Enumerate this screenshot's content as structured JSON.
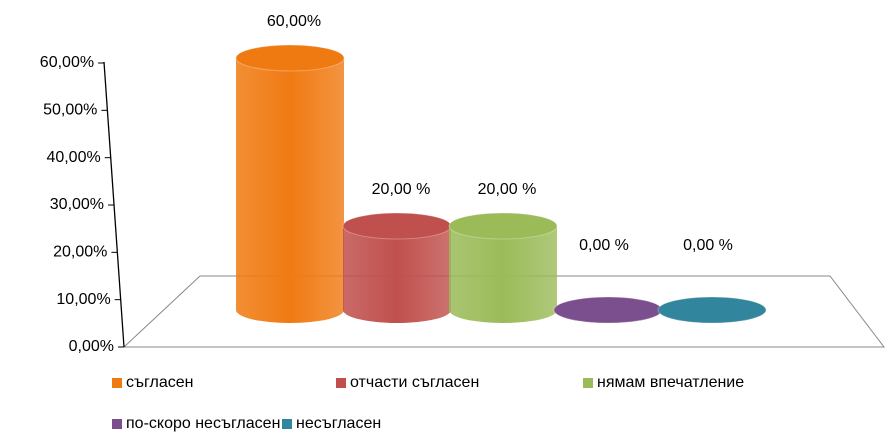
{
  "chart_data": {
    "type": "bar",
    "categories": [
      "съгласен",
      "отчасти съгласен",
      "нямам впечатление",
      "по-скоро несъгласен",
      "несъгласен"
    ],
    "values": [
      60,
      20,
      20,
      0,
      0
    ],
    "value_labels": [
      "60,00%",
      "20,00 %",
      "20,00 %",
      "0,00 %",
      "0,00 %"
    ],
    "colors": [
      "#f07a12",
      "#c0504d",
      "#9bbb59",
      "#7b4f8e",
      "#31859c"
    ],
    "ylim": [
      0,
      60
    ],
    "yticks": [
      {
        "value": 0,
        "label": "0,00%"
      },
      {
        "value": 10,
        "label": "10,00%"
      },
      {
        "value": 20,
        "label": "20,00%"
      },
      {
        "value": 30,
        "label": "30,00%"
      },
      {
        "value": 40,
        "label": "40,00%"
      },
      {
        "value": 50,
        "label": "50,00%"
      },
      {
        "value": 60,
        "label": "60,00%"
      }
    ]
  }
}
